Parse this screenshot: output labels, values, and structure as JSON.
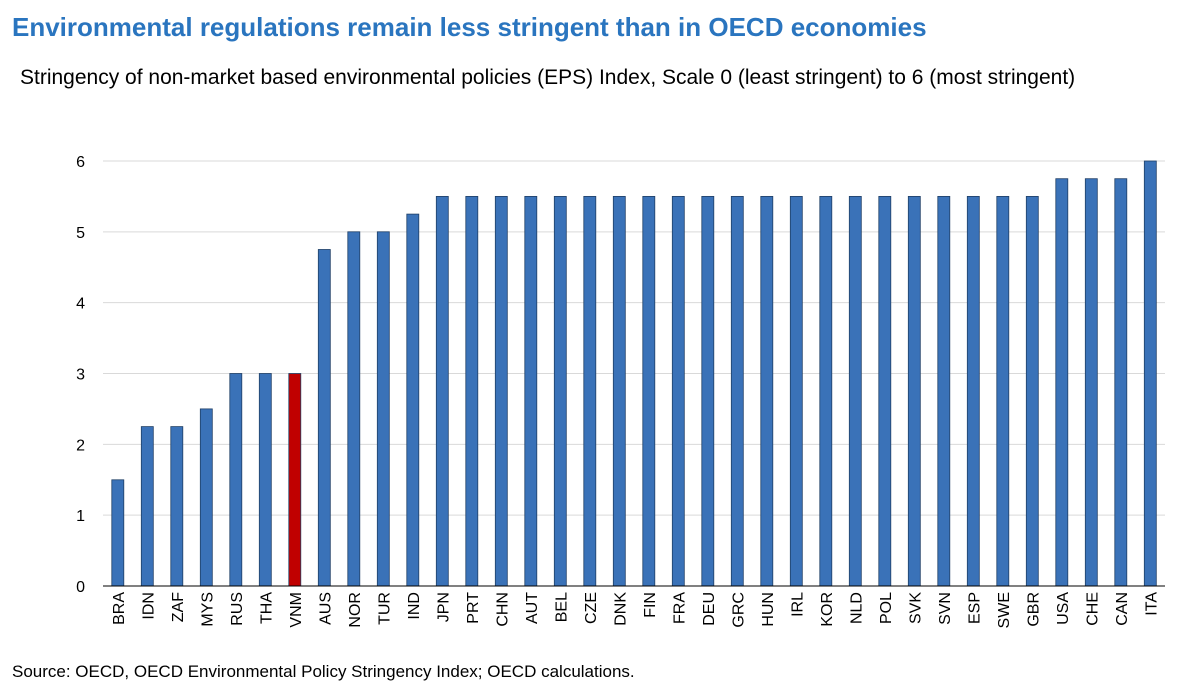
{
  "chart_data": {
    "type": "bar",
    "title": "Environmental regulations remain less stringent than in OECD economies",
    "subtitle": "Stringency of non-market based environmental policies (EPS) Index, Scale 0 (least stringent) to 6 (most stringent)",
    "source": "Source: OECD, OECD Environmental Policy Stringency Index; OECD calculations.",
    "categories": [
      "BRA",
      "IDN",
      "ZAF",
      "MYS",
      "RUS",
      "THA",
      "VNM",
      "AUS",
      "NOR",
      "TUR",
      "IND",
      "JPN",
      "PRT",
      "CHN",
      "AUT",
      "BEL",
      "CZE",
      "DNK",
      "FIN",
      "FRA",
      "DEU",
      "GRC",
      "HUN",
      "IRL",
      "KOR",
      "NLD",
      "POL",
      "SVK",
      "SVN",
      "ESP",
      "SWE",
      "GBR",
      "USA",
      "CHE",
      "CAN",
      "ITA"
    ],
    "values": [
      1.5,
      2.25,
      2.25,
      2.5,
      3,
      3,
      3,
      4.75,
      5,
      5,
      5.25,
      5.5,
      5.5,
      5.5,
      5.5,
      5.5,
      5.5,
      5.5,
      5.5,
      5.5,
      5.5,
      5.5,
      5.5,
      5.5,
      5.5,
      5.5,
      5.5,
      5.5,
      5.5,
      5.5,
      5.5,
      5.5,
      5.75,
      5.75,
      5.75,
      6
    ],
    "highlight": "VNM",
    "yticks": [
      0,
      1,
      2,
      3,
      4,
      5,
      6
    ],
    "ylim": [
      0,
      6
    ],
    "xlabel": "",
    "ylabel": "",
    "grid": true,
    "colors": {
      "bar": "#3a72b8",
      "highlight": "#c00000",
      "title": "#2a75bf",
      "grid": "#d9d9d9",
      "axis": "#000000"
    }
  }
}
